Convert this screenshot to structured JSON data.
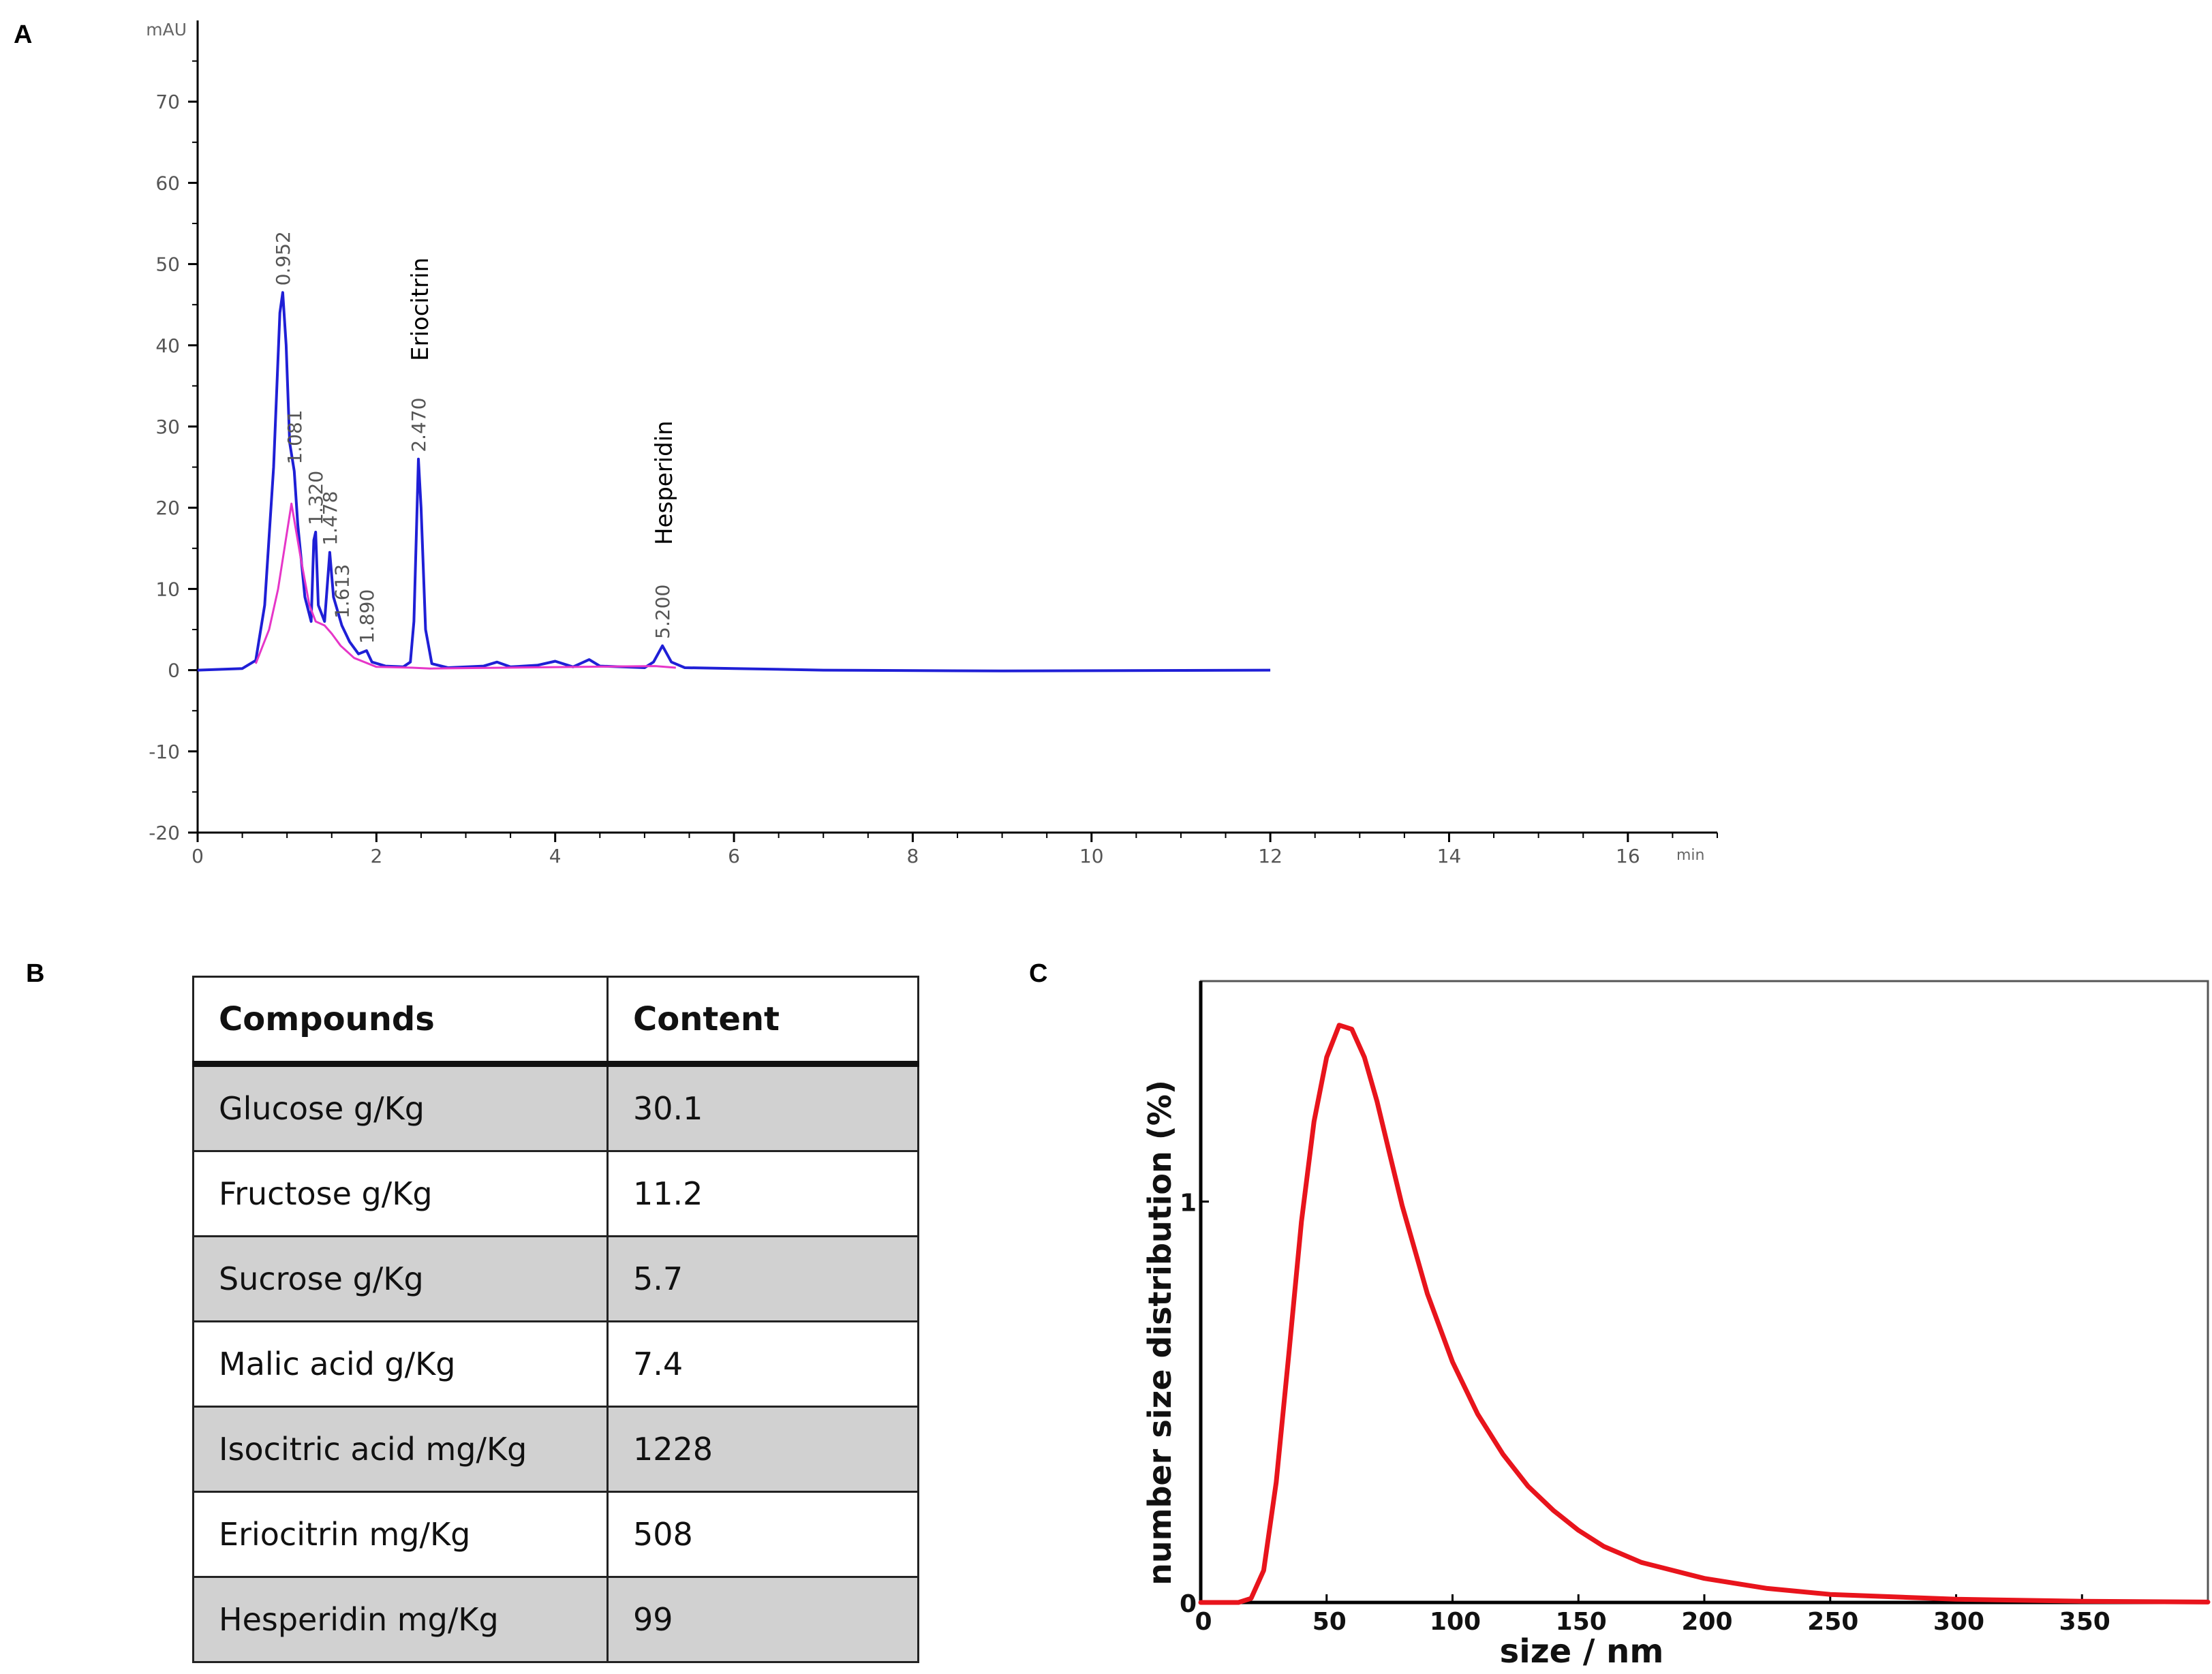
{
  "labels": {
    "a": "A",
    "b": "B",
    "c": "C"
  },
  "chart_data": [
    {
      "type": "line",
      "panel": "A",
      "title": "",
      "ylabel": "mAU",
      "xlabel": "min",
      "xlim": [
        0,
        17
      ],
      "ylim": [
        -20,
        80
      ],
      "xticks": [
        "0",
        "2",
        "4",
        "6",
        "8",
        "10",
        "12",
        "14",
        "16"
      ],
      "yticks": [
        "-20",
        "-10",
        "0",
        "10",
        "20",
        "30",
        "40",
        "50",
        "60",
        "70"
      ],
      "series": [
        {
          "name": "chromatogram",
          "color": "#1f1fd6",
          "points": [
            [
              0,
              0
            ],
            [
              0.5,
              0.2
            ],
            [
              0.65,
              1.2
            ],
            [
              0.75,
              8
            ],
            [
              0.85,
              25
            ],
            [
              0.92,
              44
            ],
            [
              0.952,
              46.5
            ],
            [
              0.99,
              40
            ],
            [
              1.03,
              28
            ],
            [
              1.081,
              24.5
            ],
            [
              1.12,
              18
            ],
            [
              1.2,
              9
            ],
            [
              1.27,
              6
            ],
            [
              1.3,
              16
            ],
            [
              1.32,
              17
            ],
            [
              1.35,
              8
            ],
            [
              1.42,
              6
            ],
            [
              1.478,
              14.5
            ],
            [
              1.52,
              9
            ],
            [
              1.613,
              5.5
            ],
            [
              1.7,
              3.5
            ],
            [
              1.8,
              2
            ],
            [
              1.89,
              2.4
            ],
            [
              1.95,
              1
            ],
            [
              2.1,
              0.5
            ],
            [
              2.3,
              0.4
            ],
            [
              2.38,
              1
            ],
            [
              2.42,
              6
            ],
            [
              2.45,
              18
            ],
            [
              2.47,
              26
            ],
            [
              2.5,
              20
            ],
            [
              2.55,
              5
            ],
            [
              2.62,
              0.8
            ],
            [
              2.8,
              0.3
            ],
            [
              3.2,
              0.5
            ],
            [
              3.35,
              1
            ],
            [
              3.5,
              0.4
            ],
            [
              3.8,
              0.6
            ],
            [
              4.0,
              1.1
            ],
            [
              4.2,
              0.4
            ],
            [
              4.38,
              1.3
            ],
            [
              4.5,
              0.5
            ],
            [
              5.0,
              0.3
            ],
            [
              5.1,
              1
            ],
            [
              5.2,
              3
            ],
            [
              5.3,
              1
            ],
            [
              5.45,
              0.3
            ],
            [
              6.0,
              0.2
            ],
            [
              7.0,
              0
            ],
            [
              9.0,
              -0.1
            ],
            [
              12.0,
              0
            ]
          ]
        },
        {
          "name": "integration baseline",
          "color": "#e636c8",
          "points": [
            [
              0.65,
              0.8
            ],
            [
              0.8,
              5
            ],
            [
              0.9,
              10
            ],
            [
              1.05,
              20.5
            ],
            [
              1.15,
              14
            ],
            [
              1.25,
              8
            ],
            [
              1.32,
              6
            ],
            [
              1.42,
              5.5
            ],
            [
              1.5,
              4.5
            ],
            [
              1.6,
              3
            ],
            [
              1.75,
              1.5
            ],
            [
              2.0,
              0.4
            ],
            [
              2.4,
              0.3
            ],
            [
              2.6,
              0.2
            ],
            [
              5.12,
              0.5
            ],
            [
              5.35,
              0.3
            ]
          ]
        }
      ],
      "annotations": [
        {
          "x": 0.952,
          "y": 46.5,
          "text": "0.952"
        },
        {
          "x": 1.081,
          "y": 24.5,
          "text": "1.081"
        },
        {
          "x": 1.32,
          "y": 17,
          "text": "1.320"
        },
        {
          "x": 1.478,
          "y": 14.5,
          "text": "1.478"
        },
        {
          "x": 1.613,
          "y": 5.5,
          "text": "1.613"
        },
        {
          "x": 1.89,
          "y": 2.4,
          "text": "1.890"
        },
        {
          "x": 2.47,
          "y": 26,
          "text": "2.470"
        },
        {
          "x": 5.2,
          "y": 3,
          "text": "5.200"
        }
      ],
      "compound_labels": [
        {
          "x": 2.47,
          "text": "Eriocitrin"
        },
        {
          "x": 5.2,
          "text": "Hesperidin"
        }
      ]
    },
    {
      "type": "line",
      "panel": "C",
      "title": "",
      "xlabel": "size / nm",
      "ylabel": "number size distribution  (%)",
      "xlim": [
        0,
        400
      ],
      "ylim": [
        0,
        1.55
      ],
      "xticks": [
        "0",
        "50",
        "100",
        "150",
        "200",
        "250",
        "300",
        "350"
      ],
      "yticks": [
        "0",
        "1"
      ],
      "series": [
        {
          "name": "distribution",
          "color": "#e8141c",
          "points": [
            [
              0,
              0
            ],
            [
              15,
              0
            ],
            [
              20,
              0.01
            ],
            [
              25,
              0.08
            ],
            [
              30,
              0.3
            ],
            [
              35,
              0.62
            ],
            [
              40,
              0.95
            ],
            [
              45,
              1.2
            ],
            [
              50,
              1.36
            ],
            [
              55,
              1.44
            ],
            [
              60,
              1.43
            ],
            [
              65,
              1.36
            ],
            [
              70,
              1.25
            ],
            [
              75,
              1.12
            ],
            [
              80,
              0.99
            ],
            [
              90,
              0.77
            ],
            [
              100,
              0.6
            ],
            [
              110,
              0.47
            ],
            [
              120,
              0.37
            ],
            [
              130,
              0.29
            ],
            [
              140,
              0.23
            ],
            [
              150,
              0.18
            ],
            [
              160,
              0.14
            ],
            [
              175,
              0.1
            ],
            [
              200,
              0.06
            ],
            [
              225,
              0.035
            ],
            [
              250,
              0.02
            ],
            [
              300,
              0.008
            ],
            [
              350,
              0.003
            ],
            [
              400,
              0.001
            ]
          ]
        }
      ]
    }
  ],
  "table": {
    "headers": [
      "Compounds",
      "Content"
    ],
    "rows": [
      [
        "Glucose g/Kg",
        "30.1"
      ],
      [
        "Fructose g/Kg",
        "11.2"
      ],
      [
        "Sucrose g/Kg",
        "5.7"
      ],
      [
        "Malic acid g/Kg",
        "7.4"
      ],
      [
        "Isocitric acid  mg/Kg",
        "1228"
      ],
      [
        "Eriocitrin mg/Kg",
        "508"
      ],
      [
        "Hesperidin mg/Kg",
        "99"
      ]
    ]
  }
}
